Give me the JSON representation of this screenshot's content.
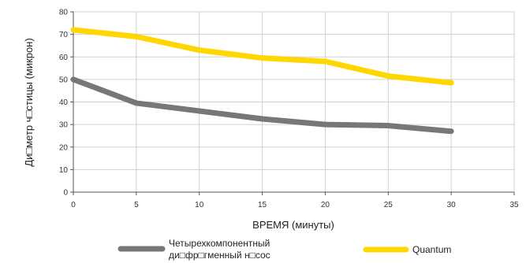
{
  "chart_data": {
    "type": "line",
    "xlabel": "ВРЕМЯ (минуты)",
    "ylabel": "Ди□метр ч□стицы (микрон)",
    "x_ticks": [
      "0",
      "5",
      "10",
      "15",
      "20",
      "25",
      "30",
      "35"
    ],
    "y_ticks": [
      "0",
      "10",
      "20",
      "30",
      "40",
      "50",
      "60",
      "70",
      "80"
    ],
    "xlim": [
      0,
      35
    ],
    "ylim": [
      0,
      80
    ],
    "grid": true,
    "legend_position": "bottom",
    "x": [
      0,
      5,
      10,
      15,
      20,
      25,
      30
    ],
    "series": [
      {
        "name_lines": [
          "Четырехкомпонентный",
          "ди□фр□гменный н□сос"
        ],
        "color": "#777777",
        "values": [
          50,
          39.5,
          36,
          32.5,
          30,
          29.5,
          27
        ]
      },
      {
        "name_lines": [
          "Quantum"
        ],
        "color": "#FFD700",
        "values": [
          72,
          69,
          63,
          59.5,
          58,
          51.5,
          48.5
        ]
      }
    ]
  }
}
